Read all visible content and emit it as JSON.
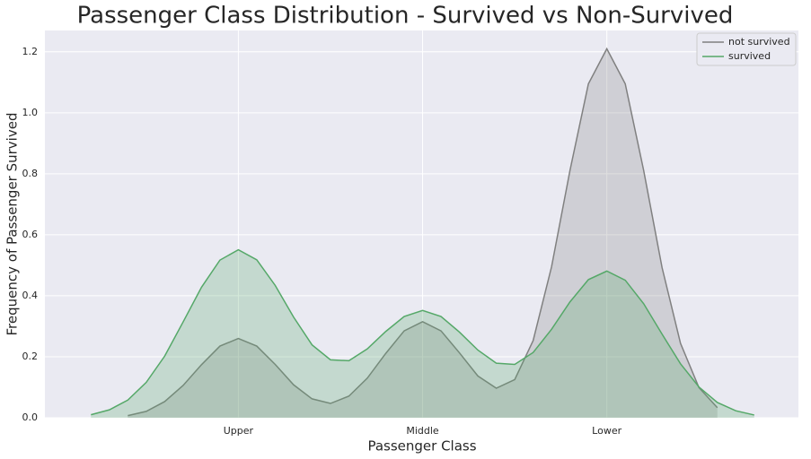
{
  "chart_data": {
    "type": "area",
    "title": "Passenger Class Distribution - Survived vs Non-Survived",
    "xlabel": "Passenger Class",
    "ylabel": "Frequency of Passenger Survived",
    "x": [
      0.2,
      0.3,
      0.4,
      0.5,
      0.6,
      0.7,
      0.8,
      0.9,
      1.0,
      1.1,
      1.2,
      1.3,
      1.4,
      1.5,
      1.6,
      1.7,
      1.8,
      1.9,
      2.0,
      2.1,
      2.2,
      2.3,
      2.4,
      2.5,
      2.6,
      2.7,
      2.8,
      2.9,
      3.0,
      3.1,
      3.2,
      3.3,
      3.4,
      3.5,
      3.6,
      3.7,
      3.8
    ],
    "series": [
      {
        "name": "not survived",
        "color": "#808080",
        "values": [
          null,
          null,
          0.007,
          0.021,
          0.053,
          0.106,
          0.174,
          0.235,
          0.26,
          0.235,
          0.175,
          0.108,
          0.062,
          0.047,
          0.071,
          0.13,
          0.211,
          0.285,
          0.315,
          0.285,
          0.213,
          0.137,
          0.097,
          0.125,
          0.253,
          0.495,
          0.811,
          1.095,
          1.21,
          1.095,
          0.811,
          0.492,
          0.244,
          0.099,
          0.033,
          null,
          null
        ]
      },
      {
        "name": "survived",
        "color": "#55a868",
        "values": [
          0.01,
          0.026,
          0.058,
          0.116,
          0.202,
          0.314,
          0.428,
          0.517,
          0.551,
          0.518,
          0.434,
          0.33,
          0.239,
          0.19,
          0.187,
          0.226,
          0.283,
          0.332,
          0.352,
          0.332,
          0.281,
          0.222,
          0.179,
          0.175,
          0.214,
          0.29,
          0.38,
          0.453,
          0.481,
          0.451,
          0.374,
          0.274,
          0.177,
          0.101,
          0.05,
          0.023,
          0.009
        ]
      }
    ],
    "xlim": [
      -0.05,
      4.04
    ],
    "ylim": [
      0,
      1.27
    ],
    "xticks": [
      {
        "value": 1,
        "label": "Upper"
      },
      {
        "value": 2,
        "label": "Middle"
      },
      {
        "value": 3,
        "label": "Lower"
      }
    ],
    "yticks": [
      {
        "value": 0,
        "label": "0.0"
      },
      {
        "value": 0.2,
        "label": "0.2"
      },
      {
        "value": 0.4,
        "label": "0.4"
      },
      {
        "value": 0.6,
        "label": "0.6"
      },
      {
        "value": 0.8,
        "label": "0.8"
      },
      {
        "value": 1.0,
        "label": "1.0"
      },
      {
        "value": 1.2,
        "label": "1.2"
      }
    ],
    "grid": true,
    "legend": "upper right"
  }
}
